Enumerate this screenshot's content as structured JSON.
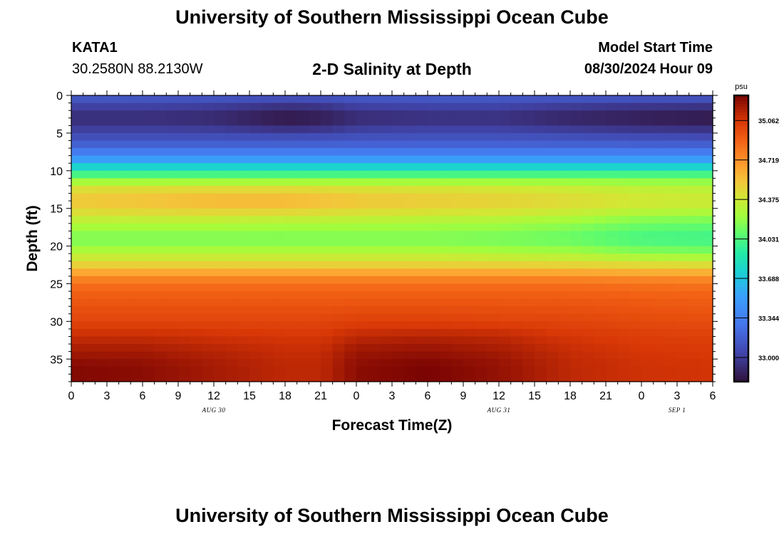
{
  "header": {
    "title": "University of Southern Mississippi Ocean Cube",
    "title_repeat": "University of Southern Mississippi Ocean Cube",
    "station": "KATA1",
    "coords": "30.2580N  88.2130W",
    "subtitle": "2-D Salinity at Depth",
    "model_start_label": "Model Start Time",
    "model_start_value": "08/30/2024 Hour 09"
  },
  "chart_data": {
    "type": "heatmap",
    "title": "2-D Salinity at Depth",
    "xlabel": "Forecast Time(Z)",
    "ylabel": "Depth (ft)",
    "x_range": [
      0,
      54
    ],
    "y_range": [
      0,
      38
    ],
    "y_inverted": true,
    "x_ticks": [
      "0",
      "3",
      "6",
      "9",
      "12",
      "15",
      "18",
      "21",
      "0",
      "3",
      "6",
      "9",
      "12",
      "15",
      "18",
      "21",
      "0",
      "3",
      "6"
    ],
    "date_labels": [
      {
        "label": "AUG 30",
        "hour": 12
      },
      {
        "label": "AUG 31",
        "hour": 36
      },
      {
        "label": "SEP 1",
        "hour": 51
      }
    ],
    "y_ticks": [
      0,
      5,
      10,
      15,
      20,
      25,
      30,
      35
    ],
    "colorbar": {
      "unit": "psu",
      "range": [
        32.79,
        35.28
      ],
      "tick_values": [
        33.0,
        33.344,
        33.688,
        34.031,
        34.375,
        34.719,
        35.062
      ],
      "tick_labels": [
        "33.000",
        "33.344",
        "33.688",
        "34.031",
        "34.375",
        "34.719",
        "35.062"
      ]
    },
    "hours": [
      0,
      6,
      12,
      18,
      21,
      24,
      30,
      36,
      42,
      48,
      54
    ],
    "depths_ft": [
      0,
      1,
      2,
      3,
      4,
      5,
      6,
      7,
      8,
      9,
      10,
      11,
      12,
      13,
      14,
      15,
      17,
      19,
      20,
      21,
      22,
      23,
      24,
      25,
      27,
      30,
      32,
      34,
      36,
      38
    ],
    "salinity_psu": [
      [
        33.16,
        33.16,
        33.16,
        33.14,
        33.14,
        33.16,
        33.16,
        33.16,
        33.16,
        33.16,
        33.16
      ],
      [
        33.08,
        33.08,
        33.06,
        33.02,
        33.03,
        33.08,
        33.09,
        33.09,
        33.06,
        33.04,
        33.03
      ],
      [
        32.96,
        32.96,
        32.94,
        32.86,
        32.88,
        32.95,
        32.97,
        32.97,
        32.92,
        32.89,
        32.87
      ],
      [
        32.92,
        32.92,
        32.9,
        32.82,
        32.84,
        32.91,
        32.93,
        32.93,
        32.88,
        32.84,
        32.82
      ],
      [
        32.96,
        32.96,
        32.94,
        32.86,
        32.88,
        32.95,
        32.97,
        32.97,
        32.92,
        32.89,
        32.87
      ],
      [
        33.06,
        33.06,
        33.06,
        33.04,
        33.05,
        33.07,
        33.08,
        33.08,
        33.06,
        33.04,
        33.03
      ],
      [
        33.12,
        33.12,
        33.12,
        33.12,
        33.12,
        33.13,
        33.13,
        33.13,
        33.12,
        33.11,
        33.1
      ],
      [
        33.25,
        33.25,
        33.25,
        33.25,
        33.25,
        33.25,
        33.25,
        33.25,
        33.25,
        33.25,
        33.25
      ],
      [
        33.4,
        33.4,
        33.4,
        33.4,
        33.4,
        33.4,
        33.4,
        33.4,
        33.4,
        33.4,
        33.4
      ],
      [
        33.62,
        33.62,
        33.62,
        33.62,
        33.62,
        33.62,
        33.62,
        33.62,
        33.62,
        33.62,
        33.62
      ],
      [
        33.9,
        33.9,
        33.9,
        33.9,
        33.9,
        33.9,
        33.9,
        33.9,
        33.9,
        33.9,
        33.9
      ],
      [
        34.12,
        34.12,
        34.12,
        34.12,
        34.12,
        34.12,
        34.12,
        34.12,
        34.12,
        34.12,
        34.12
      ],
      [
        34.38,
        34.38,
        34.38,
        34.38,
        34.38,
        34.37,
        34.36,
        34.35,
        34.33,
        34.3,
        34.28
      ],
      [
        34.48,
        34.5,
        34.52,
        34.52,
        34.5,
        34.48,
        34.46,
        34.44,
        34.4,
        34.36,
        34.34
      ],
      [
        34.54,
        34.56,
        34.6,
        34.6,
        34.58,
        34.55,
        34.52,
        34.5,
        34.46,
        34.4,
        34.38
      ],
      [
        34.48,
        34.5,
        34.52,
        34.52,
        34.5,
        34.48,
        34.46,
        34.44,
        34.4,
        34.34,
        34.32
      ],
      [
        34.28,
        34.28,
        34.28,
        34.26,
        34.26,
        34.26,
        34.25,
        34.24,
        34.2,
        34.12,
        34.1
      ],
      [
        34.14,
        34.14,
        34.14,
        34.14,
        34.14,
        34.14,
        34.14,
        34.12,
        34.08,
        34.0,
        33.98
      ],
      [
        34.2,
        34.2,
        34.2,
        34.2,
        34.2,
        34.2,
        34.2,
        34.18,
        34.16,
        34.08,
        34.06
      ],
      [
        34.3,
        34.3,
        34.3,
        34.3,
        34.3,
        34.3,
        34.3,
        34.28,
        34.26,
        34.2,
        34.18
      ],
      [
        34.42,
        34.42,
        34.42,
        34.42,
        34.42,
        34.42,
        34.42,
        34.41,
        34.4,
        34.36,
        34.34
      ],
      [
        34.56,
        34.56,
        34.56,
        34.56,
        34.56,
        34.56,
        34.56,
        34.56,
        34.55,
        34.53,
        34.52
      ],
      [
        34.72,
        34.72,
        34.72,
        34.72,
        34.72,
        34.72,
        34.72,
        34.72,
        34.72,
        34.7,
        34.7
      ],
      [
        34.84,
        34.84,
        34.84,
        34.84,
        34.84,
        34.84,
        34.84,
        34.84,
        34.84,
        34.83,
        34.82
      ],
      [
        34.92,
        34.92,
        34.92,
        34.92,
        34.92,
        34.92,
        34.92,
        34.92,
        34.92,
        34.91,
        34.9
      ],
      [
        35.0,
        35.0,
        35.0,
        35.0,
        35.0,
        35.02,
        35.02,
        35.01,
        35.0,
        34.98,
        34.97
      ],
      [
        35.1,
        35.1,
        35.08,
        35.06,
        35.06,
        35.12,
        35.14,
        35.12,
        35.06,
        35.03,
        35.02
      ],
      [
        35.18,
        35.18,
        35.14,
        35.1,
        35.1,
        35.2,
        35.22,
        35.18,
        35.1,
        35.06,
        35.05
      ],
      [
        35.26,
        35.24,
        35.18,
        35.12,
        35.12,
        35.24,
        35.28,
        35.22,
        35.12,
        35.08,
        35.07
      ],
      [
        35.26,
        35.24,
        35.18,
        35.12,
        35.12,
        35.24,
        35.28,
        35.22,
        35.12,
        35.08,
        35.07
      ]
    ]
  }
}
